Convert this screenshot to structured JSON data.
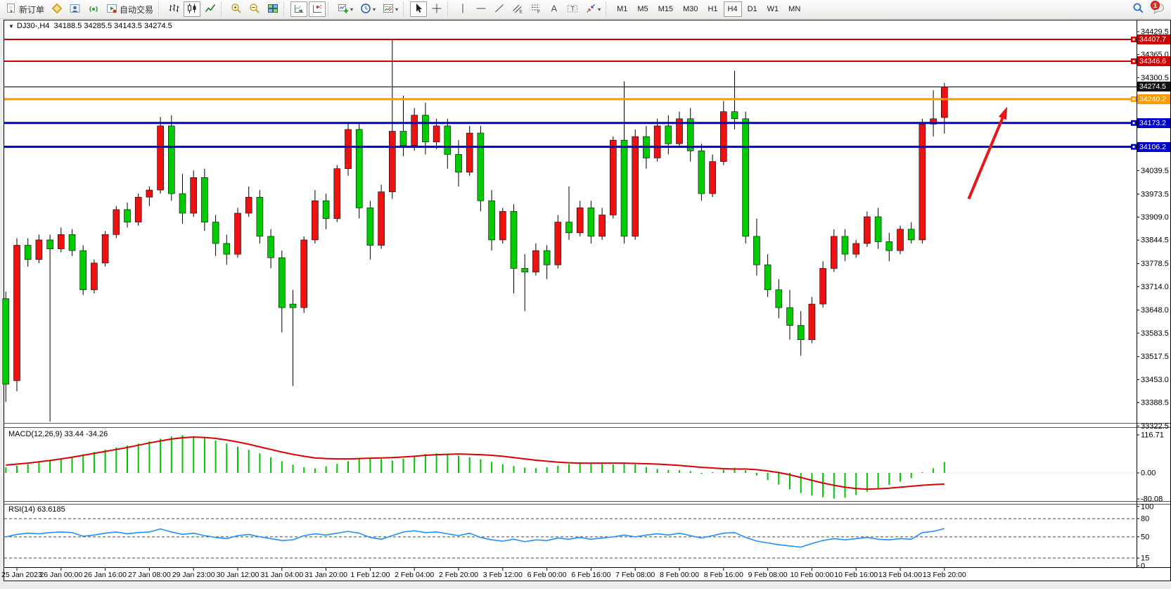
{
  "toolbar": {
    "new_order_label": "新订单",
    "auto_trading_label": "自动交易",
    "timeframes": [
      "M1",
      "M5",
      "M15",
      "M30",
      "H1",
      "H4",
      "D1",
      "W1",
      "MN"
    ],
    "active_timeframe": "H4",
    "notification_badge": "1"
  },
  "chart": {
    "symbol_period": "DJ30-,H4",
    "ohlc_line": "34188.5 34285.5 34143.5 34274.5",
    "price_axis_ticks": [
      "34429.5",
      "34365.0",
      "34300.5",
      "34039.5",
      "33973.5",
      "33909.0",
      "33844.5",
      "33778.5",
      "33714.0",
      "33648.0",
      "33583.5",
      "33517.5",
      "33453.0",
      "33388.5",
      "33322.5"
    ],
    "levels": [
      {
        "price": 34407.7,
        "label": "34407.7",
        "color": "#d40000",
        "width": 2
      },
      {
        "price": 34346.6,
        "label": "34346.6",
        "color": "#d40000",
        "width": 2
      },
      {
        "price": 34274.5,
        "label": "34274.5",
        "color": "#000000",
        "width": 1
      },
      {
        "price": 34240.2,
        "label": "34240.2",
        "color": "#ff9900",
        "width": 3
      },
      {
        "price": 34173.2,
        "label": "34173.2",
        "color": "#0000cc",
        "width": 3
      },
      {
        "price": 34106.2,
        "label": "34106.2",
        "color": "#0000cc",
        "width": 3
      }
    ]
  },
  "macd": {
    "label": "MACD(12,26,9) 33.44 -34.26",
    "axis": [
      "116.71",
      "0.00",
      "-80.08"
    ]
  },
  "rsi": {
    "label": "RSI(14) 63.6185",
    "axis": [
      "100",
      "80",
      "50",
      "15",
      "0"
    ],
    "dashed_levels": [
      80,
      50,
      15
    ]
  },
  "chart_data": {
    "type": "candlestick",
    "symbol": "DJ30-",
    "period": "H4",
    "title": "DJ30-,H4 34188.5 34285.5 34143.5 34274.5",
    "last_bar": {
      "open": 34188.5,
      "high": 34285.5,
      "low": 34143.5,
      "close": 34274.5
    },
    "up_color": "#ee1111",
    "down_color": "#00cc00",
    "y_axis_range": [
      33322.5,
      34429.5
    ],
    "horizontal_line_prices": [
      34407.7,
      34346.6,
      34274.5,
      34240.2,
      34173.2,
      34106.2
    ],
    "time_labels": [
      "25 Jan 2023",
      "26 Jan 00:00",
      "26 Jan 16:00",
      "27 Jan 08:00",
      "29 Jan 23:00",
      "30 Jan 12:00",
      "31 Jan 04:00",
      "31 Jan 20:00",
      "1 Feb 12:00",
      "2 Feb 04:00",
      "2 Feb 20:00",
      "3 Feb 12:00",
      "6 Feb 00:00",
      "6 Feb 16:00",
      "7 Feb 08:00",
      "8 Feb 00:00",
      "8 Feb 16:00",
      "9 Feb 08:00",
      "10 Feb 00:00",
      "10 Feb 16:00",
      "13 Feb 04:00",
      "13 Feb 20:00"
    ],
    "candles_ohlc": [
      [
        33680,
        33700,
        33390,
        33440
      ],
      [
        33450,
        33850,
        33420,
        33830
      ],
      [
        33830,
        33850,
        33770,
        33790
      ],
      [
        33790,
        33860,
        33780,
        33845
      ],
      [
        33845,
        33860,
        33335,
        33820
      ],
      [
        33820,
        33880,
        33810,
        33860
      ],
      [
        33860,
        33875,
        33800,
        33815
      ],
      [
        33815,
        33830,
        33690,
        33705
      ],
      [
        33705,
        33790,
        33695,
        33780
      ],
      [
        33780,
        33870,
        33770,
        33860
      ],
      [
        33860,
        33940,
        33850,
        33930
      ],
      [
        33930,
        33950,
        33880,
        33895
      ],
      [
        33895,
        33975,
        33885,
        33965
      ],
      [
        33965,
        33995,
        33940,
        33985
      ],
      [
        33985,
        34190,
        33975,
        34165
      ],
      [
        34165,
        34195,
        33955,
        33975
      ],
      [
        33975,
        34030,
        33890,
        33920
      ],
      [
        33920,
        34040,
        33910,
        34020
      ],
      [
        34020,
        34045,
        33870,
        33895
      ],
      [
        33895,
        33915,
        33800,
        33835
      ],
      [
        33835,
        33860,
        33775,
        33805
      ],
      [
        33805,
        33935,
        33795,
        33920
      ],
      [
        33920,
        33995,
        33910,
        33965
      ],
      [
        33965,
        33985,
        33835,
        33855
      ],
      [
        33855,
        33875,
        33765,
        33795
      ],
      [
        33795,
        33815,
        33585,
        33655
      ],
      [
        33665,
        33705,
        33435,
        33655
      ],
      [
        33655,
        33855,
        33640,
        33845
      ],
      [
        33845,
        33985,
        33835,
        33955
      ],
      [
        33955,
        33975,
        33875,
        33905
      ],
      [
        33905,
        34055,
        33895,
        34045
      ],
      [
        34045,
        34175,
        34025,
        34155
      ],
      [
        34155,
        34170,
        33905,
        33935
      ],
      [
        33935,
        33955,
        33790,
        33830
      ],
      [
        33830,
        34000,
        33820,
        33980
      ],
      [
        33980,
        34407,
        33960,
        34150
      ],
      [
        34150,
        34250,
        34080,
        34110
      ],
      [
        34110,
        34215,
        34095,
        34195
      ],
      [
        34195,
        34230,
        34085,
        34120
      ],
      [
        34120,
        34185,
        34100,
        34165
      ],
      [
        34165,
        34185,
        34045,
        34085
      ],
      [
        34085,
        34125,
        33995,
        34035
      ],
      [
        34035,
        34165,
        34025,
        34145
      ],
      [
        34145,
        34165,
        33925,
        33955
      ],
      [
        33955,
        33985,
        33815,
        33845
      ],
      [
        33845,
        33935,
        33835,
        33925
      ],
      [
        33925,
        33945,
        33695,
        33765
      ],
      [
        33765,
        33805,
        33645,
        33755
      ],
      [
        33755,
        33835,
        33745,
        33815
      ],
      [
        33815,
        33830,
        33735,
        33775
      ],
      [
        33775,
        33915,
        33765,
        33895
      ],
      [
        33895,
        33995,
        33845,
        33865
      ],
      [
        33865,
        33955,
        33855,
        33935
      ],
      [
        33935,
        33955,
        33835,
        33855
      ],
      [
        33855,
        33935,
        33845,
        33915
      ],
      [
        33915,
        34135,
        33905,
        34125
      ],
      [
        34125,
        34290,
        33835,
        33855
      ],
      [
        33855,
        34155,
        33845,
        34135
      ],
      [
        34135,
        34165,
        34045,
        34075
      ],
      [
        34075,
        34185,
        34065,
        34165
      ],
      [
        34165,
        34195,
        34085,
        34115
      ],
      [
        34115,
        34205,
        34105,
        34185
      ],
      [
        34185,
        34215,
        34065,
        34095
      ],
      [
        34095,
        34115,
        33955,
        33975
      ],
      [
        33975,
        34085,
        33965,
        34065
      ],
      [
        34065,
        34235,
        34055,
        34205
      ],
      [
        34205,
        34320,
        34155,
        34185
      ],
      [
        34185,
        34205,
        33835,
        33855
      ],
      [
        33855,
        33905,
        33745,
        33775
      ],
      [
        33775,
        33805,
        33685,
        33705
      ],
      [
        33705,
        33735,
        33625,
        33655
      ],
      [
        33655,
        33705,
        33565,
        33605
      ],
      [
        33605,
        33645,
        33520,
        33565
      ],
      [
        33565,
        33685,
        33555,
        33665
      ],
      [
        33665,
        33785,
        33655,
        33765
      ],
      [
        33765,
        33875,
        33755,
        33855
      ],
      [
        33855,
        33875,
        33785,
        33805
      ],
      [
        33805,
        33845,
        33795,
        33835
      ],
      [
        33835,
        33925,
        33825,
        33910
      ],
      [
        33910,
        33935,
        33820,
        33840
      ],
      [
        33840,
        33865,
        33785,
        33815
      ],
      [
        33815,
        33885,
        33805,
        33875
      ],
      [
        33875,
        33895,
        33835,
        33845
      ],
      [
        33845,
        34185,
        33835,
        34170
      ],
      [
        34170,
        34265,
        34135,
        34185
      ],
      [
        34188.5,
        34285.5,
        34143.5,
        34274.5
      ]
    ],
    "macd": {
      "params": "12,26,9",
      "values_label": [
        33.44,
        -34.26
      ],
      "axis_max": 116.71,
      "axis_min": -80.08,
      "histogram": [
        18,
        22,
        27,
        32,
        38,
        44,
        50,
        57,
        64,
        71,
        78,
        84,
        90,
        97,
        105,
        112,
        116,
        113,
        107,
        99,
        90,
        81,
        71,
        60,
        48,
        36,
        25,
        17,
        14,
        20,
        28,
        36,
        43,
        47,
        43,
        38,
        44,
        52,
        58,
        60,
        57,
        53,
        48,
        42,
        34,
        27,
        21,
        16,
        14,
        17,
        22,
        27,
        31,
        30,
        28,
        26,
        29,
        26,
        18,
        12,
        9,
        8,
        6,
        -3,
        2,
        10,
        16,
        8,
        -8,
        -22,
        -36,
        -50,
        -62,
        -70,
        -75,
        -79,
        -76,
        -68,
        -58,
        -47,
        -37,
        -27,
        -16,
        -2,
        14,
        33.44
      ],
      "signal": [
        24,
        27,
        30,
        34,
        38,
        43,
        48,
        54,
        60,
        66,
        72,
        78,
        85,
        92,
        98,
        104,
        108,
        110,
        109,
        106,
        101,
        95,
        88,
        80,
        72,
        64,
        57,
        51,
        46,
        44,
        43,
        43,
        44,
        45,
        46,
        47,
        49,
        51,
        54,
        56,
        57,
        58,
        57,
        56,
        54,
        51,
        47,
        43,
        39,
        36,
        33,
        31,
        30,
        30,
        30,
        30,
        30,
        29,
        28,
        27,
        25,
        23,
        20,
        17,
        15,
        13,
        12,
        12,
        10,
        6,
        1,
        -6,
        -14,
        -23,
        -31,
        -38,
        -44,
        -48,
        -50,
        -49,
        -47,
        -44,
        -41,
        -38,
        -36,
        -34.26
      ]
    },
    "rsi": {
      "period": 14,
      "current": 63.6185,
      "values": [
        50,
        54,
        56,
        55,
        57,
        58,
        57,
        51,
        53,
        56,
        58,
        55,
        57,
        58,
        63,
        58,
        54,
        56,
        52,
        49,
        47,
        52,
        54,
        50,
        47,
        44,
        45,
        52,
        55,
        53,
        56,
        59,
        56,
        49,
        46,
        52,
        58,
        60,
        57,
        58,
        55,
        52,
        56,
        49,
        45,
        43,
        46,
        42,
        45,
        44,
        48,
        46,
        49,
        46,
        48,
        50,
        53,
        50,
        53,
        55,
        53,
        56,
        52,
        48,
        52,
        56,
        57,
        49,
        43,
        40,
        37,
        35,
        33,
        39,
        44,
        47,
        45,
        47,
        49,
        46,
        45,
        47,
        46,
        57,
        59,
        63.6185
      ]
    },
    "annotations": [
      {
        "type": "arrow",
        "from": {
          "bar": 87.2,
          "price": 33960
        },
        "to": {
          "bar": 90.6,
          "price": 34212
        },
        "color": "#e81717",
        "width": 4
      }
    ]
  }
}
